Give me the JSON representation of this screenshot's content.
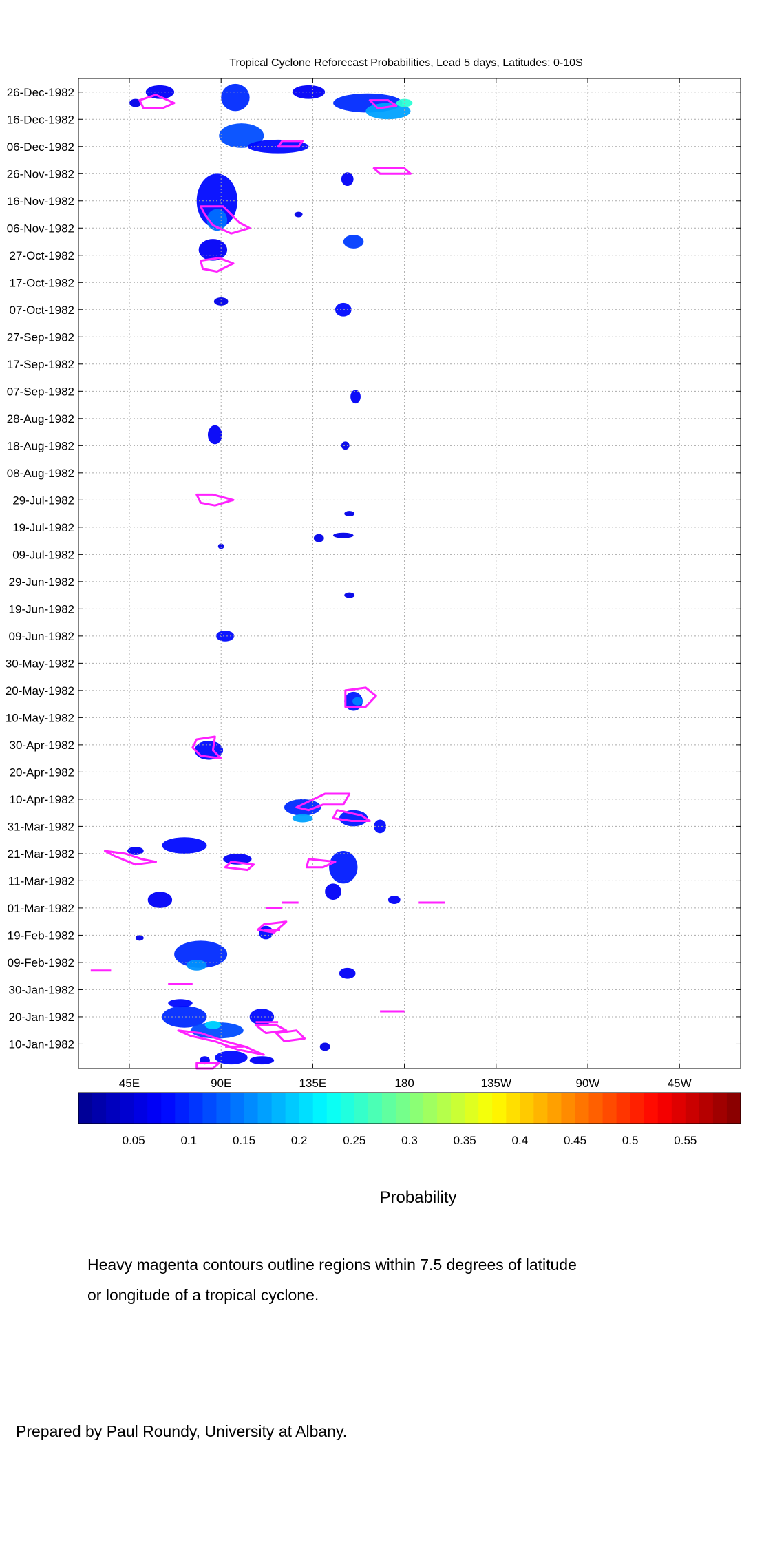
{
  "chart_data": {
    "type": "heatmap",
    "title": "Tropical Cyclone Reforecast Probabilities, Lead 5 days, Latitudes: 0-10S",
    "xlabel": "",
    "ylabel": "",
    "x_ticks": [
      "45E",
      "90E",
      "135E",
      "180",
      "135W",
      "90W",
      "45W"
    ],
    "x_tick_lon": [
      45,
      90,
      135,
      180,
      225,
      270,
      315
    ],
    "x_range_lon": [
      20,
      345
    ],
    "y_ticks": [
      "26-Dec-1982",
      "16-Dec-1982",
      "06-Dec-1982",
      "26-Nov-1982",
      "16-Nov-1982",
      "06-Nov-1982",
      "27-Oct-1982",
      "17-Oct-1982",
      "07-Oct-1982",
      "27-Sep-1982",
      "17-Sep-1982",
      "07-Sep-1982",
      "28-Aug-1982",
      "18-Aug-1982",
      "08-Aug-1982",
      "29-Jul-1982",
      "19-Jul-1982",
      "09-Jul-1982",
      "29-Jun-1982",
      "19-Jun-1982",
      "09-Jun-1982",
      "30-May-1982",
      "20-May-1982",
      "10-May-1982",
      "30-Apr-1982",
      "20-Apr-1982",
      "10-Apr-1982",
      "31-Mar-1982",
      "21-Mar-1982",
      "11-Mar-1982",
      "01-Mar-1982",
      "19-Feb-1982",
      "09-Feb-1982",
      "30-Jan-1982",
      "20-Jan-1982",
      "10-Jan-1982"
    ],
    "y_tick_day": [
      360,
      350,
      340,
      330,
      320,
      310,
      300,
      290,
      280,
      270,
      260,
      250,
      240,
      230,
      220,
      210,
      200,
      190,
      180,
      170,
      160,
      150,
      140,
      130,
      120,
      110,
      100,
      90,
      80,
      70,
      60,
      50,
      40,
      30,
      20,
      10
    ],
    "y_range_day": [
      1,
      365
    ],
    "grid": true,
    "colorbar": {
      "label": "Probability",
      "ticks": [
        "0.05",
        "0.1",
        "0.15",
        "0.2",
        "0.25",
        "0.3",
        "0.35",
        "0.4",
        "0.45",
        "0.5",
        "0.55"
      ],
      "range": [
        0,
        0.6
      ]
    },
    "field_blobs": [
      {
        "lon": 60,
        "day": 360,
        "w": 14,
        "h": 5,
        "p": 0.07
      },
      {
        "lon": 97,
        "day": 358,
        "w": 14,
        "h": 10,
        "p": 0.1
      },
      {
        "lon": 133,
        "day": 360,
        "w": 16,
        "h": 5,
        "p": 0.07
      },
      {
        "lon": 162,
        "day": 356,
        "w": 34,
        "h": 7,
        "p": 0.1
      },
      {
        "lon": 172,
        "day": 353,
        "w": 22,
        "h": 6,
        "p": 0.17
      },
      {
        "lon": 180,
        "day": 356,
        "w": 8,
        "h": 3,
        "p": 0.25
      },
      {
        "lon": 100,
        "day": 344,
        "w": 22,
        "h": 9,
        "p": 0.12
      },
      {
        "lon": 118,
        "day": 340,
        "w": 30,
        "h": 5,
        "p": 0.08
      },
      {
        "lon": 48,
        "day": 356,
        "w": 6,
        "h": 3,
        "p": 0.06
      },
      {
        "lon": 88,
        "day": 320,
        "w": 20,
        "h": 20,
        "p": 0.08
      },
      {
        "lon": 88,
        "day": 313,
        "w": 10,
        "h": 8,
        "p": 0.14
      },
      {
        "lon": 86,
        "day": 302,
        "w": 14,
        "h": 8,
        "p": 0.07
      },
      {
        "lon": 152,
        "day": 328,
        "w": 6,
        "h": 5,
        "p": 0.07
      },
      {
        "lon": 155,
        "day": 305,
        "w": 10,
        "h": 5,
        "p": 0.11
      },
      {
        "lon": 128,
        "day": 315,
        "w": 4,
        "h": 2,
        "p": 0.06
      },
      {
        "lon": 90,
        "day": 283,
        "w": 7,
        "h": 3,
        "p": 0.06
      },
      {
        "lon": 150,
        "day": 280,
        "w": 8,
        "h": 5,
        "p": 0.08
      },
      {
        "lon": 156,
        "day": 248,
        "w": 5,
        "h": 5,
        "p": 0.07
      },
      {
        "lon": 87,
        "day": 234,
        "w": 7,
        "h": 7,
        "p": 0.07
      },
      {
        "lon": 151,
        "day": 230,
        "w": 4,
        "h": 3,
        "p": 0.06
      },
      {
        "lon": 153,
        "day": 205,
        "w": 5,
        "h": 2,
        "p": 0.06
      },
      {
        "lon": 150,
        "day": 197,
        "w": 10,
        "h": 2,
        "p": 0.06
      },
      {
        "lon": 138,
        "day": 196,
        "w": 5,
        "h": 3,
        "p": 0.06
      },
      {
        "lon": 90,
        "day": 193,
        "w": 3,
        "h": 2,
        "p": 0.06
      },
      {
        "lon": 153,
        "day": 175,
        "w": 5,
        "h": 2,
        "p": 0.06
      },
      {
        "lon": 92,
        "day": 160,
        "w": 9,
        "h": 4,
        "p": 0.08
      },
      {
        "lon": 155,
        "day": 136,
        "w": 9,
        "h": 7,
        "p": 0.09
      },
      {
        "lon": 157,
        "day": 136,
        "w": 5,
        "h": 3,
        "p": 0.15
      },
      {
        "lon": 84,
        "day": 118,
        "w": 14,
        "h": 7,
        "p": 0.08
      },
      {
        "lon": 130,
        "day": 97,
        "w": 18,
        "h": 6,
        "p": 0.1
      },
      {
        "lon": 130,
        "day": 93,
        "w": 10,
        "h": 3,
        "p": 0.17
      },
      {
        "lon": 155,
        "day": 93,
        "w": 14,
        "h": 6,
        "p": 0.09
      },
      {
        "lon": 168,
        "day": 90,
        "w": 6,
        "h": 5,
        "p": 0.08
      },
      {
        "lon": 72,
        "day": 83,
        "w": 22,
        "h": 6,
        "p": 0.08
      },
      {
        "lon": 48,
        "day": 81,
        "w": 8,
        "h": 3,
        "p": 0.07
      },
      {
        "lon": 98,
        "day": 78,
        "w": 14,
        "h": 4,
        "p": 0.07
      },
      {
        "lon": 150,
        "day": 75,
        "w": 14,
        "h": 12,
        "p": 0.09
      },
      {
        "lon": 145,
        "day": 66,
        "w": 8,
        "h": 6,
        "p": 0.07
      },
      {
        "lon": 175,
        "day": 63,
        "w": 6,
        "h": 3,
        "p": 0.07
      },
      {
        "lon": 60,
        "day": 63,
        "w": 12,
        "h": 6,
        "p": 0.07
      },
      {
        "lon": 112,
        "day": 51,
        "w": 7,
        "h": 5,
        "p": 0.08
      },
      {
        "lon": 80,
        "day": 43,
        "w": 26,
        "h": 10,
        "p": 0.1
      },
      {
        "lon": 78,
        "day": 39,
        "w": 10,
        "h": 4,
        "p": 0.16
      },
      {
        "lon": 50,
        "day": 49,
        "w": 4,
        "h": 2,
        "p": 0.06
      },
      {
        "lon": 152,
        "day": 36,
        "w": 8,
        "h": 4,
        "p": 0.07
      },
      {
        "lon": 72,
        "day": 20,
        "w": 22,
        "h": 8,
        "p": 0.1
      },
      {
        "lon": 88,
        "day": 15,
        "w": 26,
        "h": 6,
        "p": 0.12
      },
      {
        "lon": 86,
        "day": 17,
        "w": 8,
        "h": 3,
        "p": 0.2
      },
      {
        "lon": 110,
        "day": 20,
        "w": 12,
        "h": 6,
        "p": 0.08
      },
      {
        "lon": 70,
        "day": 25,
        "w": 12,
        "h": 3,
        "p": 0.08
      },
      {
        "lon": 95,
        "day": 5,
        "w": 16,
        "h": 5,
        "p": 0.08
      },
      {
        "lon": 110,
        "day": 4,
        "w": 12,
        "h": 3,
        "p": 0.07
      },
      {
        "lon": 141,
        "day": 9,
        "w": 5,
        "h": 3,
        "p": 0.06
      },
      {
        "lon": 82,
        "day": 4,
        "w": 5,
        "h": 3,
        "p": 0.07
      }
    ],
    "tc_contours": [
      [
        [
          50,
          357
        ],
        [
          58,
          359
        ],
        [
          67,
          356
        ],
        [
          61,
          354
        ],
        [
          52,
          354
        ]
      ],
      [
        [
          163,
          357
        ],
        [
          172,
          357
        ],
        [
          176,
          355
        ],
        [
          167,
          354
        ]
      ],
      [
        [
          165,
          332
        ],
        [
          180,
          332
        ],
        [
          183,
          330
        ],
        [
          168,
          330
        ]
      ],
      [
        [
          120,
          342
        ],
        [
          130,
          342
        ],
        [
          128,
          340
        ],
        [
          118,
          340
        ]
      ],
      [
        [
          80,
          318
        ],
        [
          91,
          318
        ],
        [
          99,
          312
        ],
        [
          104,
          310
        ],
        [
          95,
          308
        ],
        [
          86,
          311
        ],
        [
          82,
          315
        ]
      ],
      [
        [
          80,
          298
        ],
        [
          89,
          299
        ],
        [
          96,
          297
        ],
        [
          88,
          294
        ],
        [
          81,
          295
        ]
      ],
      [
        [
          78,
          212
        ],
        [
          86,
          212
        ],
        [
          96,
          210
        ],
        [
          87,
          208
        ],
        [
          80,
          209
        ]
      ],
      [
        [
          151,
          140
        ],
        [
          161,
          141
        ],
        [
          166,
          138
        ],
        [
          161,
          134
        ],
        [
          151,
          134
        ]
      ],
      [
        [
          78,
          122
        ],
        [
          87,
          123
        ],
        [
          86,
          118
        ],
        [
          90,
          115
        ],
        [
          80,
          116
        ],
        [
          76,
          119
        ]
      ],
      [
        [
          141,
          102
        ],
        [
          153,
          102
        ],
        [
          150,
          98
        ],
        [
          140,
          98
        ],
        [
          133,
          96
        ],
        [
          127,
          97
        ]
      ],
      [
        [
          147,
          96
        ],
        [
          159,
          94
        ],
        [
          163,
          92
        ],
        [
          154,
          92
        ],
        [
          145,
          93
        ]
      ],
      [
        [
          133,
          78
        ],
        [
          146,
          77
        ],
        [
          140,
          75
        ],
        [
          132,
          75
        ]
      ],
      [
        [
          33,
          81
        ],
        [
          43,
          80
        ],
        [
          51,
          78
        ],
        [
          58,
          77
        ],
        [
          48,
          76
        ],
        [
          38,
          79
        ]
      ],
      [
        [
          95,
          77
        ],
        [
          106,
          76
        ],
        [
          103,
          74
        ],
        [
          92,
          75
        ]
      ],
      [
        [
          111,
          54
        ],
        [
          122,
          55
        ],
        [
          116,
          51
        ],
        [
          108,
          52
        ]
      ],
      [
        [
          112,
          60
        ],
        [
          120,
          60
        ]
      ],
      [
        [
          120,
          62
        ],
        [
          128,
          62
        ]
      ],
      [
        [
          111,
          52
        ],
        [
          119,
          52
        ]
      ],
      [
        [
          26,
          37
        ],
        [
          36,
          37
        ]
      ],
      [
        [
          64,
          32
        ],
        [
          76,
          32
        ]
      ],
      [
        [
          168,
          22
        ],
        [
          180,
          22
        ]
      ],
      [
        [
          187,
          62
        ],
        [
          200,
          62
        ]
      ],
      [
        [
          69,
          15
        ],
        [
          80,
          14
        ],
        [
          92,
          11
        ],
        [
          102,
          9
        ],
        [
          111,
          6
        ],
        [
          98,
          8
        ],
        [
          87,
          11
        ],
        [
          75,
          13
        ]
      ],
      [
        [
          107,
          17
        ],
        [
          117,
          17
        ],
        [
          122,
          15
        ],
        [
          112,
          14
        ]
      ],
      [
        [
          117,
          14
        ],
        [
          127,
          15
        ],
        [
          131,
          12
        ],
        [
          121,
          11
        ]
      ],
      [
        [
          107,
          18
        ],
        [
          118,
          18
        ]
      ],
      [
        [
          78,
          3
        ],
        [
          89,
          3
        ],
        [
          86,
          1
        ],
        [
          78,
          1
        ]
      ],
      [
        [
          92,
          9
        ],
        [
          101,
          9
        ]
      ]
    ]
  },
  "caption": {
    "line1": "Heavy magenta contours outline regions within 7.5 degrees of latitude",
    "line2": "or longitude of a tropical cyclone."
  },
  "credit": "Prepared by Paul Roundy, University at Albany.",
  "colors": {
    "contour": "#ff22ff",
    "grid": "#aaaaaa",
    "colormap": [
      "#00008f",
      "#0000ff",
      "#0080ff",
      "#00ffff",
      "#80ff80",
      "#ffff00",
      "#ff8000",
      "#ff0000",
      "#800000"
    ]
  }
}
